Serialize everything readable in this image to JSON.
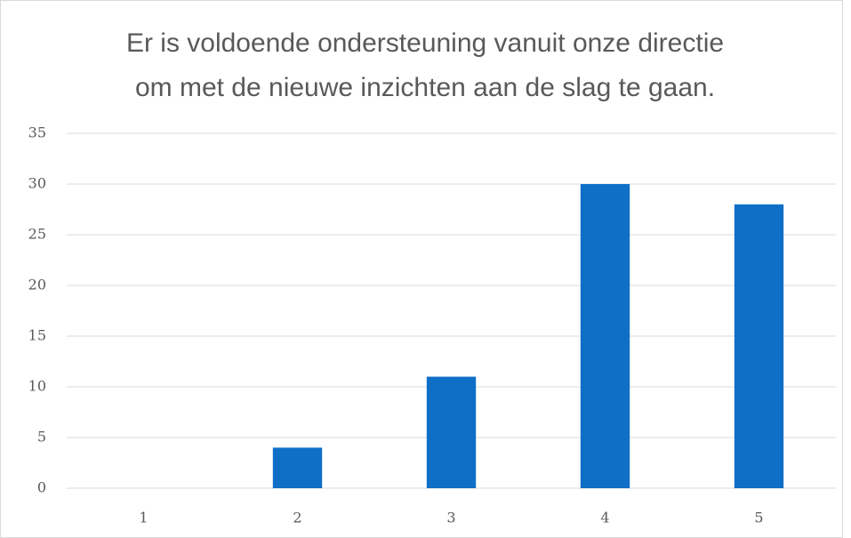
{
  "chart_data": {
    "type": "bar",
    "title": [
      "Er is voldoende ondersteuning vanuit onze directie",
      "om met de nieuwe inzichten aan de slag te gaan."
    ],
    "categories": [
      "1",
      "2",
      "3",
      "4",
      "5"
    ],
    "values": [
      0,
      4,
      11,
      30,
      28
    ],
    "color": "#0f6fc6",
    "ylim": [
      0,
      35
    ],
    "yticks": [
      0,
      5,
      10,
      15,
      20,
      25,
      30,
      35
    ],
    "grid": true
  }
}
